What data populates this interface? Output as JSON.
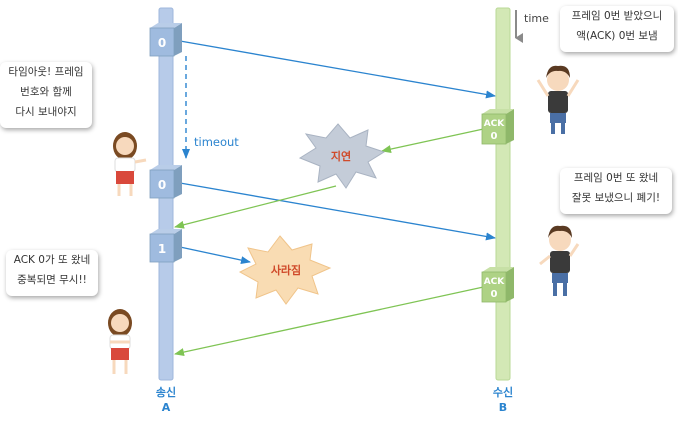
{
  "diagram": {
    "time_label": "time",
    "timeout_label": "timeout",
    "sender": {
      "line1": "송신",
      "line2": "A"
    },
    "receiver": {
      "line1": "수신",
      "line2": "B"
    },
    "frames": [
      {
        "num": "0"
      },
      {
        "num": "0"
      },
      {
        "num": "1"
      }
    ],
    "acks": [
      {
        "label": "ACK",
        "num": "0"
      },
      {
        "label": "ACK",
        "num": "0"
      }
    ],
    "burst_delay": "지연",
    "burst_lost": "사라짐",
    "bubbles": {
      "sender_timeout": "타임아웃! 프레임\n번호와 함께\n다시 보내야지",
      "sender_dup_ack": "ACK 0가 또 왔네\n중복되면 무시!!",
      "receiver_first": "프레임 0번 받았으니\n액(ACK) 0번 보냄",
      "receiver_dup": "프레임 0번 또 왔네\n잘못 보냈으니 폐기!"
    },
    "colors": {
      "sender_bar": "#b7cbe9",
      "receiver_bar": "#d3e8b5",
      "frame_arrow": "#2b84cf",
      "ack_arrow": "#7fc454",
      "burst_delay": "#c4ccd8",
      "burst_lost": "#f9dcb3"
    }
  }
}
